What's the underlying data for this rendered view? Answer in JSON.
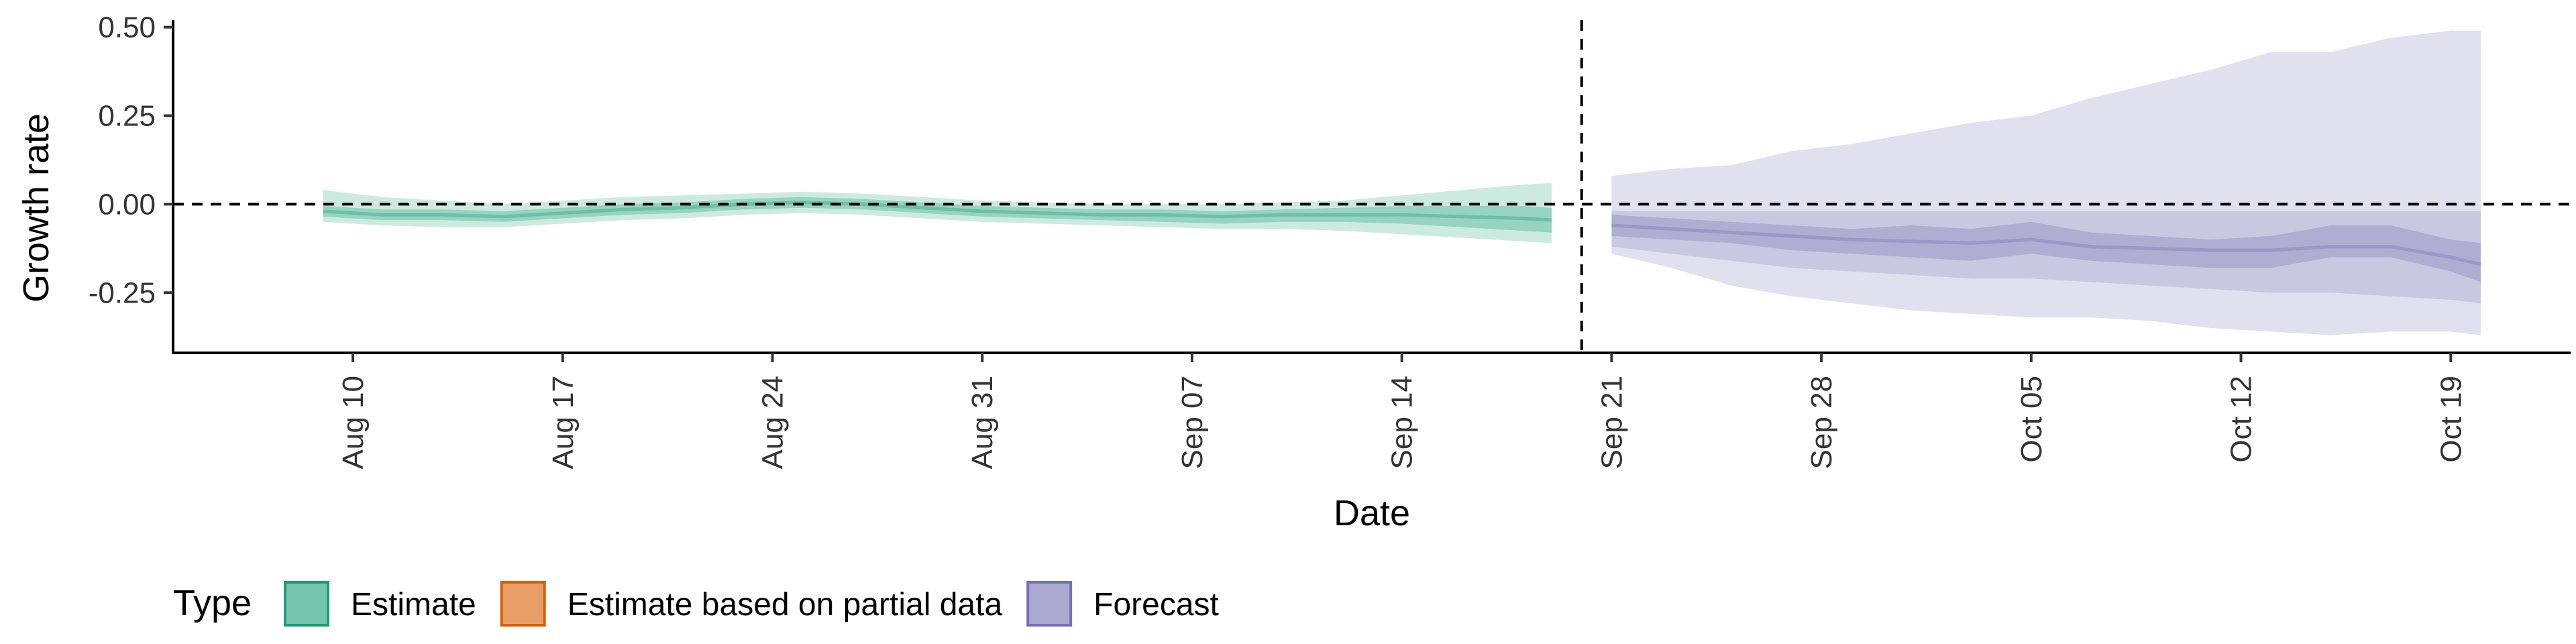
{
  "chart_data": {
    "type": "area",
    "title": "",
    "xlabel": "Date",
    "ylabel": "Growth rate",
    "ylim": [
      -0.42,
      0.52
    ],
    "yticks": [
      0.5,
      0.25,
      0.0,
      -0.25
    ],
    "ytick_labels": [
      "0.50",
      "0.25",
      "0.00",
      "-0.25"
    ],
    "xlim": [
      "2020-08-04",
      "2020-10-23"
    ],
    "xticks": [
      "2020-08-10",
      "2020-08-17",
      "2020-08-24",
      "2020-08-31",
      "2020-09-07",
      "2020-09-14",
      "2020-09-21",
      "2020-09-28",
      "2020-10-05",
      "2020-10-12",
      "2020-10-19"
    ],
    "xtick_labels": [
      "Aug 10",
      "Aug 17",
      "Aug 24",
      "Aug 31",
      "Sep 07",
      "Sep 14",
      "Sep 21",
      "Sep 28",
      "Oct 05",
      "Oct 12",
      "Oct 19"
    ],
    "reference_lines": {
      "horizontal_y": 0.0,
      "vertical_date": "2020-09-20",
      "style": "dashed"
    },
    "grid": false,
    "legend": {
      "title": "Type",
      "position": "bottom",
      "entries": [
        {
          "label": "Estimate",
          "color": "#1b9e77"
        },
        {
          "label": "Estimate based on partial data",
          "color": "#d95f02"
        },
        {
          "label": "Forecast",
          "color": "#7570b3"
        }
      ]
    },
    "series": [
      {
        "name": "Estimate",
        "color": "#1b9e77",
        "x": [
          "2020-08-09",
          "2020-08-11",
          "2020-08-13",
          "2020-08-15",
          "2020-08-17",
          "2020-08-19",
          "2020-08-21",
          "2020-08-23",
          "2020-08-25",
          "2020-08-27",
          "2020-08-29",
          "2020-08-31",
          "2020-09-02",
          "2020-09-04",
          "2020-09-06",
          "2020-09-08",
          "2020-09-10",
          "2020-09-12",
          "2020-09-14",
          "2020-09-16",
          "2020-09-18",
          "2020-09-19"
        ],
        "median": [
          -0.02,
          -0.03,
          -0.03,
          -0.035,
          -0.025,
          -0.015,
          -0.01,
          0.0,
          0.005,
          0.0,
          -0.01,
          -0.02,
          -0.025,
          -0.03,
          -0.03,
          -0.035,
          -0.03,
          -0.03,
          -0.03,
          -0.035,
          -0.04,
          -0.045
        ],
        "inner_band": [
          [
            -0.035,
            -0.005
          ],
          [
            -0.045,
            -0.015
          ],
          [
            -0.045,
            -0.015
          ],
          [
            -0.05,
            -0.02
          ],
          [
            -0.04,
            -0.01
          ],
          [
            -0.03,
            0.0
          ],
          [
            -0.025,
            0.005
          ],
          [
            -0.015,
            0.015
          ],
          [
            -0.01,
            0.02
          ],
          [
            -0.015,
            0.015
          ],
          [
            -0.025,
            0.005
          ],
          [
            -0.035,
            -0.005
          ],
          [
            -0.04,
            -0.01
          ],
          [
            -0.045,
            -0.015
          ],
          [
            -0.05,
            -0.015
          ],
          [
            -0.055,
            -0.02
          ],
          [
            -0.05,
            -0.015
          ],
          [
            -0.05,
            -0.01
          ],
          [
            -0.055,
            -0.005
          ],
          [
            -0.065,
            -0.005
          ],
          [
            -0.075,
            -0.005
          ],
          [
            -0.08,
            -0.01
          ]
        ],
        "outer_band": [
          [
            -0.05,
            0.04
          ],
          [
            -0.06,
            0.02
          ],
          [
            -0.065,
            0.01
          ],
          [
            -0.065,
            0.0
          ],
          [
            -0.055,
            0.01
          ],
          [
            -0.045,
            0.02
          ],
          [
            -0.04,
            0.025
          ],
          [
            -0.03,
            0.03
          ],
          [
            -0.025,
            0.035
          ],
          [
            -0.03,
            0.03
          ],
          [
            -0.04,
            0.02
          ],
          [
            -0.05,
            0.01
          ],
          [
            -0.055,
            0.005
          ],
          [
            -0.06,
            0.0
          ],
          [
            -0.065,
            0.0
          ],
          [
            -0.07,
            0.0
          ],
          [
            -0.07,
            0.005
          ],
          [
            -0.075,
            0.01
          ],
          [
            -0.085,
            0.025
          ],
          [
            -0.095,
            0.04
          ],
          [
            -0.105,
            0.055
          ],
          [
            -0.11,
            0.06
          ]
        ]
      },
      {
        "name": "Forecast",
        "color": "#7570b3",
        "x": [
          "2020-09-21",
          "2020-09-23",
          "2020-09-25",
          "2020-09-27",
          "2020-09-29",
          "2020-10-01",
          "2020-10-03",
          "2020-10-05",
          "2020-10-07",
          "2020-10-09",
          "2020-10-11",
          "2020-10-13",
          "2020-10-15",
          "2020-10-17",
          "2020-10-19",
          "2020-10-20"
        ],
        "median": [
          -0.06,
          -0.07,
          -0.08,
          -0.09,
          -0.1,
          -0.105,
          -0.11,
          -0.1,
          -0.12,
          -0.125,
          -0.13,
          -0.13,
          -0.12,
          -0.12,
          -0.15,
          -0.17
        ],
        "inner_band": [
          [
            -0.09,
            -0.03
          ],
          [
            -0.1,
            -0.04
          ],
          [
            -0.11,
            -0.05
          ],
          [
            -0.13,
            -0.06
          ],
          [
            -0.14,
            -0.07
          ],
          [
            -0.15,
            -0.06
          ],
          [
            -0.16,
            -0.07
          ],
          [
            -0.14,
            -0.05
          ],
          [
            -0.16,
            -0.08
          ],
          [
            -0.17,
            -0.09
          ],
          [
            -0.18,
            -0.1
          ],
          [
            -0.18,
            -0.09
          ],
          [
            -0.15,
            -0.06
          ],
          [
            -0.15,
            -0.06
          ],
          [
            -0.19,
            -0.1
          ],
          [
            -0.22,
            -0.11
          ]
        ],
        "middle_band": [
          [
            -0.12,
            -0.02
          ],
          [
            -0.14,
            -0.02
          ],
          [
            -0.16,
            -0.02
          ],
          [
            -0.18,
            -0.02
          ],
          [
            -0.19,
            -0.02
          ],
          [
            -0.2,
            -0.02
          ],
          [
            -0.21,
            -0.02
          ],
          [
            -0.21,
            -0.02
          ],
          [
            -0.22,
            -0.02
          ],
          [
            -0.23,
            -0.02
          ],
          [
            -0.24,
            -0.02
          ],
          [
            -0.25,
            -0.02
          ],
          [
            -0.25,
            -0.02
          ],
          [
            -0.26,
            -0.02
          ],
          [
            -0.27,
            -0.02
          ],
          [
            -0.28,
            -0.02
          ]
        ],
        "outer_band": [
          [
            -0.14,
            0.08
          ],
          [
            -0.18,
            0.1
          ],
          [
            -0.23,
            0.11
          ],
          [
            -0.26,
            0.15
          ],
          [
            -0.28,
            0.17
          ],
          [
            -0.3,
            0.2
          ],
          [
            -0.31,
            0.23
          ],
          [
            -0.32,
            0.25
          ],
          [
            -0.32,
            0.3
          ],
          [
            -0.33,
            0.34
          ],
          [
            -0.35,
            0.38
          ],
          [
            -0.36,
            0.43
          ],
          [
            -0.37,
            0.43
          ],
          [
            -0.36,
            0.47
          ],
          [
            -0.36,
            0.49
          ],
          [
            -0.37,
            0.49
          ]
        ]
      }
    ]
  }
}
